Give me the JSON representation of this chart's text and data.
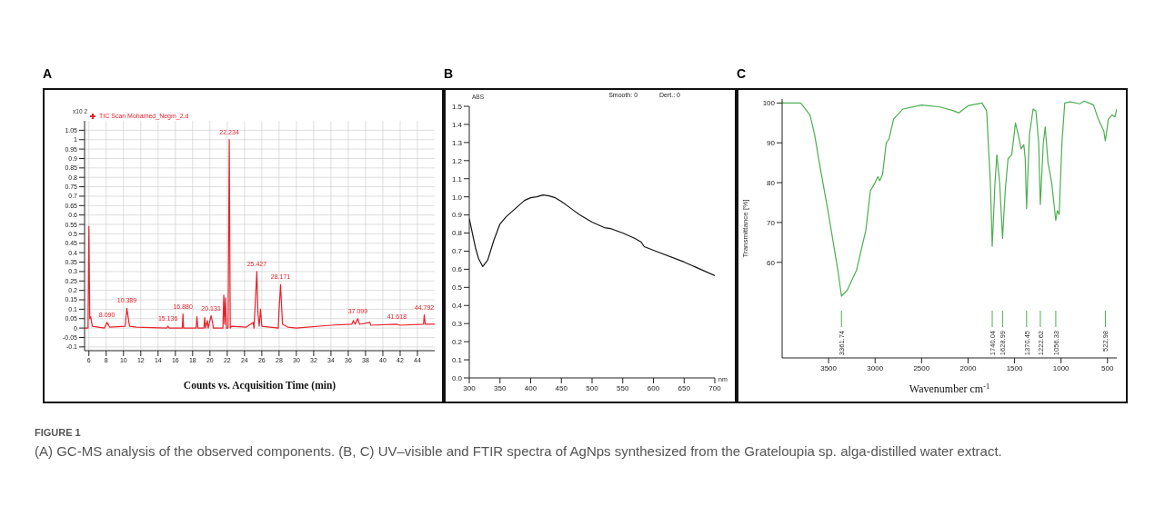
{
  "chart_data": [
    {
      "type": "line",
      "title": "A",
      "xlabel": "Counts vs. Acquisition Time (min)",
      "ylabel": "x10 2",
      "xlim": [
        5.5,
        46
      ],
      "ylim": [
        -0.12,
        1.1
      ],
      "xticks": [
        6,
        8,
        10,
        12,
        14,
        16,
        18,
        20,
        22,
        24,
        26,
        28,
        30,
        32,
        34,
        36,
        38,
        40,
        42,
        44
      ],
      "yticks": [
        -0.1,
        -0.05,
        0,
        0.05,
        0.1,
        0.15,
        0.2,
        0.25,
        0.3,
        0.35,
        0.4,
        0.45,
        0.5,
        0.55,
        0.6,
        0.65,
        0.7,
        0.75,
        0.8,
        0.85,
        0.9,
        0.95,
        1,
        1.05
      ],
      "grid": true,
      "legend": "top left",
      "marker": "none",
      "series": [
        {
          "name": "TIC Scan Mohamed_Negm_2.d",
          "color": "#e8212a",
          "x": [
            5.5,
            5.9,
            6.0,
            6.1,
            6.2,
            6.4,
            7.8,
            8.09,
            8.4,
            10.2,
            10.389,
            10.7,
            11.5,
            15.0,
            15.136,
            15.3,
            16.8,
            16.88,
            16.95,
            18.4,
            18.5,
            18.6,
            19.3,
            19.4,
            19.5,
            19.7,
            19.8,
            20.131,
            20.3,
            20.4,
            21.5,
            21.6,
            21.7,
            21.8,
            21.9,
            22.1,
            22.234,
            22.35,
            22.5,
            24.2,
            25.0,
            25.1,
            25.427,
            25.55,
            25.7,
            25.85,
            26.0,
            27.9,
            28.0,
            28.171,
            28.25,
            28.4,
            29,
            30,
            34,
            36.4,
            36.6,
            36.8,
            37.099,
            37.3,
            38.5,
            38.6,
            41.618,
            42,
            44.7,
            44.792,
            44.9,
            46
          ],
          "values": [
            0,
            0,
            0.54,
            0.05,
            0.06,
            0.01,
            0,
            0.03,
            0.005,
            0.01,
            0.105,
            0.01,
            0.005,
            0,
            0.01,
            0,
            0,
            0.075,
            0,
            0,
            0.06,
            0,
            0,
            0.055,
            0,
            0.04,
            0,
            0.065,
            0.03,
            0,
            0,
            0.175,
            0.02,
            0.16,
            0,
            0,
            1.0,
            0,
            0.01,
            0.005,
            0.03,
            0,
            0.3,
            0.08,
            0.01,
            0.1,
            0.01,
            0,
            0.1,
            0.23,
            0.15,
            0.02,
            0.005,
            0,
            0.015,
            0.02,
            0.04,
            0.02,
            0.05,
            0.02,
            0.03,
            0.015,
            0.02,
            0.015,
            0.02,
            0.07,
            0.02,
            0.02
          ]
        }
      ],
      "annotations": [
        {
          "text": "8.090",
          "x": 8.09,
          "y": 0.03
        },
        {
          "text": "10.389",
          "x": 10.389,
          "y": 0.105
        },
        {
          "text": "15.136",
          "x": 15.136,
          "y": 0.01
        },
        {
          "text": "16.880",
          "x": 16.88,
          "y": 0.075
        },
        {
          "text": "20.131",
          "x": 20.131,
          "y": 0.065
        },
        {
          "text": "22.234",
          "x": 22.234,
          "y": 1.0
        },
        {
          "text": "25.427",
          "x": 25.427,
          "y": 0.3
        },
        {
          "text": "28.171",
          "x": 28.171,
          "y": 0.23
        },
        {
          "text": "37.099",
          "x": 37.099,
          "y": 0.05
        },
        {
          "text": "41.618",
          "x": 41.618,
          "y": 0.02
        },
        {
          "text": "44.792",
          "x": 44.792,
          "y": 0.07
        },
        "FIGURE 1",
        "(A) GC-MS analysis of the observed components. (B, C) UV–visible and FTIR spectra of AgNps synthesized from the Grateloupia sp. alga-distilled water extract."
      ]
    },
    {
      "type": "line",
      "title": "B",
      "xlabel": "nm",
      "ylabel": "ABS",
      "xlim": [
        300,
        700
      ],
      "ylim": [
        0,
        1.5
      ],
      "xticks": [
        300,
        350,
        400,
        450,
        500,
        550,
        600,
        650,
        700
      ],
      "yticks": [
        {
          "value": 0,
          "label": "0.0"
        },
        0.1,
        0.2,
        0.3,
        0.4,
        0.5,
        0.6,
        0.7,
        0.8,
        0.9,
        {
          "value": 1,
          "label": "1.0"
        },
        1.1,
        1.2,
        1.3,
        1.4,
        1.5
      ],
      "marker": "none",
      "series": [
        {
          "color": "#111111",
          "x": [
            300,
            305,
            310,
            315,
            322,
            330,
            340,
            350,
            360,
            370,
            380,
            390,
            400,
            410,
            420,
            430,
            440,
            450,
            460,
            470,
            480,
            490,
            500,
            510,
            520,
            530,
            550,
            570,
            580,
            585,
            600,
            650,
            700
          ],
          "values": [
            0.88,
            0.8,
            0.72,
            0.66,
            0.615,
            0.65,
            0.76,
            0.85,
            0.89,
            0.92,
            0.95,
            0.98,
            0.995,
            1.0,
            1.01,
            1.005,
            0.995,
            0.975,
            0.95,
            0.925,
            0.9,
            0.88,
            0.86,
            0.845,
            0.83,
            0.825,
            0.8,
            0.77,
            0.75,
            0.725,
            0.705,
            0.64,
            0.565
          ]
        }
      ],
      "annotations": [
        "Smooth: 0",
        "Dert.: 0"
      ]
    },
    {
      "type": "line",
      "title": "C",
      "xlabel": "Wavenumber cm$^{-1}$",
      "ylabel": "Transmittance [%]",
      "xlim": [
        4000,
        400
      ],
      "ylim": [
        36,
        101
      ],
      "xticks": [
        3500,
        3000,
        2500,
        2000,
        1500,
        1000,
        500
      ],
      "yticks": [
        60,
        70,
        80,
        90,
        100
      ],
      "marker": "none",
      "series": [
        {
          "color": "#4caf50",
          "x": [
            4000,
            3800,
            3700,
            3650,
            3600,
            3500,
            3400,
            3361.74,
            3300,
            3200,
            3100,
            3050,
            3000,
            2970,
            2950,
            2920,
            2880,
            2850,
            2800,
            2700,
            2500,
            2300,
            2150,
            2100,
            2000,
            1850,
            1800,
            1760,
            1740.04,
            1710,
            1690,
            1660,
            1628.99,
            1600,
            1570,
            1530,
            1490,
            1460,
            1430,
            1400,
            1385,
            1370.45,
            1340,
            1300,
            1270,
            1240,
            1222.62,
            1190,
            1170,
            1140,
            1100,
            1056.33,
            1040,
            1020,
            990,
            960,
            900,
            800,
            750,
            700,
            650,
            600,
            540,
            522.98,
            490,
            450,
            420,
            400
          ],
          "values": [
            100,
            100,
            97,
            92,
            85,
            72,
            58,
            51.5,
            53,
            58,
            68,
            78,
            80,
            81.5,
            80.5,
            82,
            90,
            91,
            96,
            98.5,
            99.5,
            99,
            98,
            97.5,
            99.3,
            100,
            98,
            80,
            64,
            80,
            87,
            80,
            66,
            78,
            86,
            87,
            95,
            92,
            88.5,
            89.5,
            86,
            73.5,
            92,
            98.5,
            98,
            90,
            74.5,
            90,
            94,
            85,
            80,
            70.5,
            73,
            72,
            90,
            100,
            100.3,
            99.8,
            100.5,
            100,
            99.5,
            96,
            93,
            90.5,
            96,
            97,
            96.5,
            98.5
          ]
        }
      ],
      "ref_lines": [
        {
          "axis": "x",
          "value": 3361.74,
          "label": "3361.74"
        },
        {
          "axis": "x",
          "value": 1740.04,
          "label": "1740.04"
        },
        {
          "axis": "x",
          "value": 1628.99,
          "label": "1628.99"
        },
        {
          "axis": "x",
          "value": 1370.45,
          "label": "1370.45"
        },
        {
          "axis": "x",
          "value": 1222.62,
          "label": "1222.62"
        },
        {
          "axis": "x",
          "value": 1056.33,
          "label": "1056.33"
        },
        {
          "axis": "x",
          "value": 522.98,
          "label": "522.98"
        }
      ]
    }
  ]
}
